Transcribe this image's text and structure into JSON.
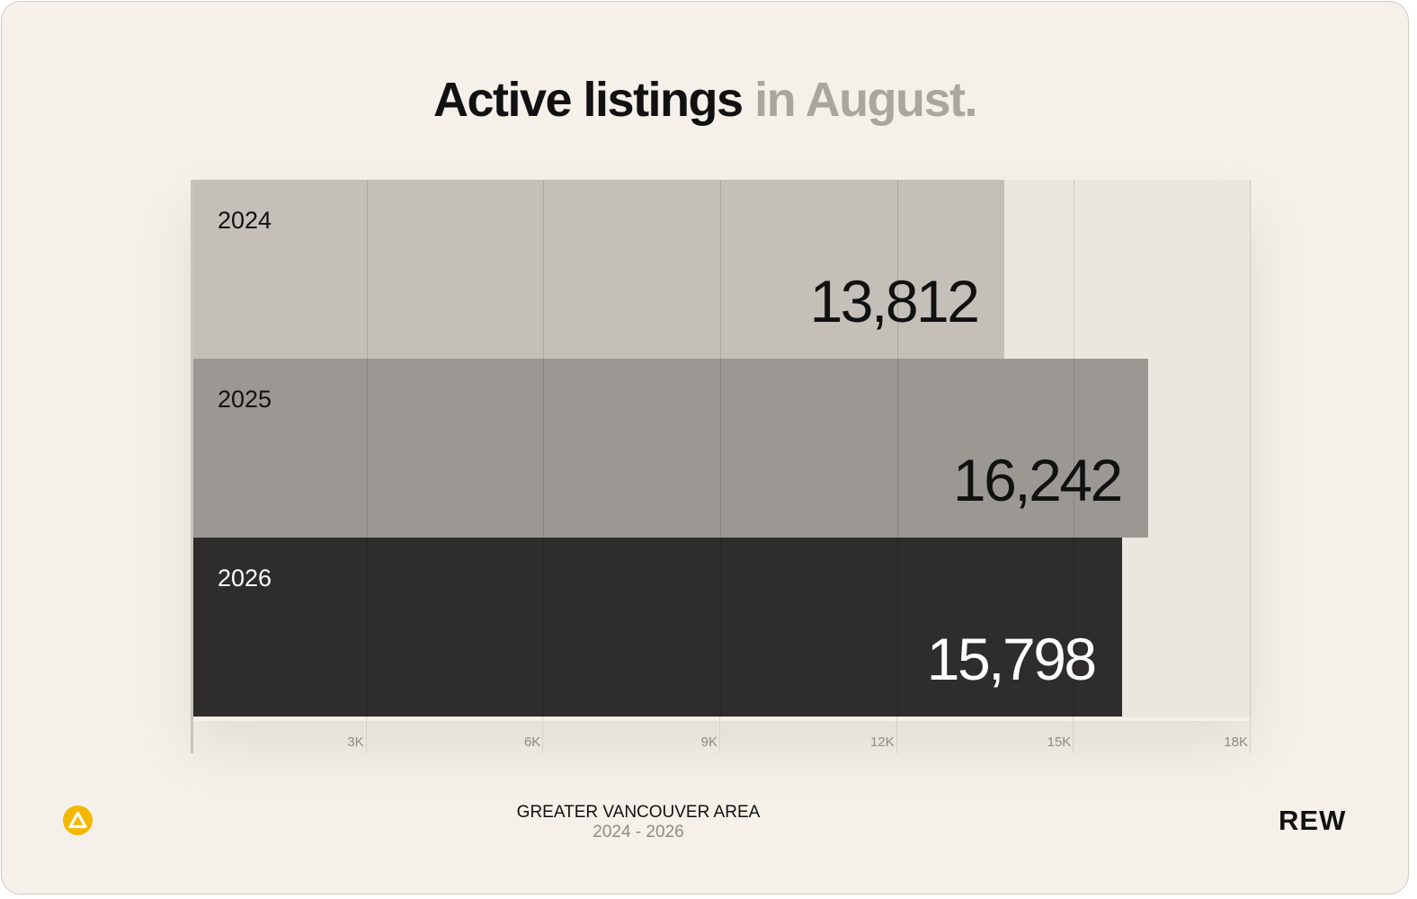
{
  "title": {
    "main": "Active listings",
    "muted": "in August."
  },
  "footer": {
    "location": "GREATER VANCOUVER AREA",
    "range": "2024 - 2026",
    "brand": "REW",
    "logo_icon": "warning-triangle-icon"
  },
  "colors": {
    "background": "#f5f1ea",
    "plot_bg": "#ebe6df",
    "accent": "#f5b800"
  },
  "chart_data": {
    "type": "bar",
    "orientation": "horizontal",
    "title": "Active listings in August.",
    "categories": [
      "2024",
      "2025",
      "2026"
    ],
    "values": [
      13812,
      16242,
      15798
    ],
    "value_labels": [
      "13,812",
      "16,242",
      "15,798"
    ],
    "bar_colors": [
      "#c4bfb8",
      "#9b9893",
      "#2e2d2b"
    ],
    "label_colors": [
      "#111111",
      "#111111",
      "#ffffff"
    ],
    "xlim": [
      0,
      18000
    ],
    "xticks": [
      3000,
      6000,
      9000,
      12000,
      15000,
      18000
    ],
    "xtick_labels": [
      "3K",
      "6K",
      "9K",
      "12K",
      "15K",
      "18K"
    ],
    "grid": true,
    "legend": "none"
  }
}
